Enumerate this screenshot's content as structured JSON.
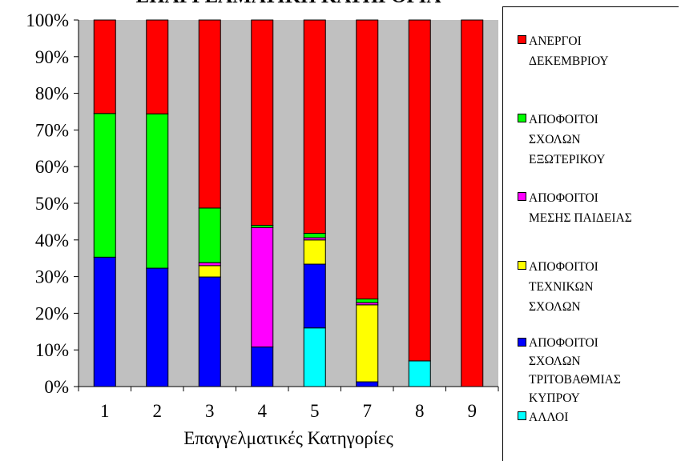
{
  "chart_data": {
    "type": "bar",
    "stacked": true,
    "normalized": true,
    "title": "ΕΠΑΓΓΕΛΜΑΤΙΚΗ ΚΑΤΗΓΟΡΙΑ",
    "xlabel": "Επαγγελματικές Κατηγορίες",
    "ylabel": "",
    "ylim": [
      0,
      100
    ],
    "yticks": [
      "0%",
      "10%",
      "20%",
      "30%",
      "40%",
      "50%",
      "60%",
      "70%",
      "80%",
      "90%",
      "100%"
    ],
    "categories": [
      "1",
      "2",
      "3",
      "4",
      "5",
      "7",
      "8",
      "9"
    ],
    "grid": false,
    "plot_background": "#c0c0c0",
    "legend_position": "right",
    "series": [
      {
        "name": "ΑΛΛΟΙ",
        "color": "#00ffff",
        "values": [
          0,
          0,
          0,
          0,
          16,
          0,
          7,
          0
        ]
      },
      {
        "name": "ΑΠΟΦΟΙΤΟΙ ΣΧΟΛΩΝ ΤΡΙΤΟΒΑΘΜΙΑΣ ΚΥΠΡΟΥ",
        "color": "#0000ff",
        "values": [
          35.3,
          32.3,
          29.9,
          10.8,
          17.4,
          1.3,
          0,
          0
        ]
      },
      {
        "name": "ΑΠΟΦΟΙΤΟΙ ΤΕΧΝΙΚΩΝ ΣΧΟΛΩΝ",
        "color": "#ffff00",
        "values": [
          0,
          0,
          3.1,
          0,
          6.6,
          21,
          0,
          0
        ]
      },
      {
        "name": "ΑΠΟΦΟΙΤΟΙ ΜΕΣΗΣ ΠΑΙΔΕΙΑΣ",
        "color": "#ff00ff",
        "values": [
          0,
          0,
          0.8,
          32.6,
          0.6,
          0.6,
          0,
          0
        ]
      },
      {
        "name": "ΑΠΟΦΟΙΤΟΙ ΣΧΟΛΩΝ ΕΞΩΤΕΡΙΚΟΥ",
        "color": "#00ff00",
        "values": [
          39.2,
          42.1,
          14.9,
          0.6,
          1.2,
          1.0,
          0,
          0
        ]
      },
      {
        "name": "ΑΝΕΡΓΟΙ ΔΕΚΕΜΒΡΙΟΥ",
        "color": "#ff0000",
        "values": [
          25.5,
          25.6,
          51.3,
          56.0,
          58.2,
          76.1,
          93,
          100
        ]
      }
    ]
  },
  "legend": {
    "items": [
      {
        "label": "ΑΝΕΡΓΟΙ\nΔΕΚΕΜΒΡΙΟΥ",
        "color": "#ff0000"
      },
      {
        "label": "ΑΠΟΦΟΙΤΟΙ\nΣΧΟΛΩΝ\nΕΞΩΤΕΡΙΚΟΥ",
        "color": "#00ff00"
      },
      {
        "label": "ΑΠΟΦΟΙΤΟΙ\nΜΕΣΗΣ ΠΑΙΔΕΙΑΣ",
        "color": "#ff00ff"
      },
      {
        "label": "ΑΠΟΦΟΙΤΟΙ\nΤΕΧΝΙΚΩΝ\nΣΧΟΛΩΝ",
        "color": "#ffff00"
      },
      {
        "label": "ΑΠΟΦΟΙΤΟΙ\nΣΧΟΛΩΝ\nΤΡΙΤΟΒΑΘΜΙΑΣ\nΚΥΠΡΟΥ",
        "color": "#0000ff"
      },
      {
        "label": "ΑΛΛΟΙ",
        "color": "#00ffff"
      }
    ]
  }
}
